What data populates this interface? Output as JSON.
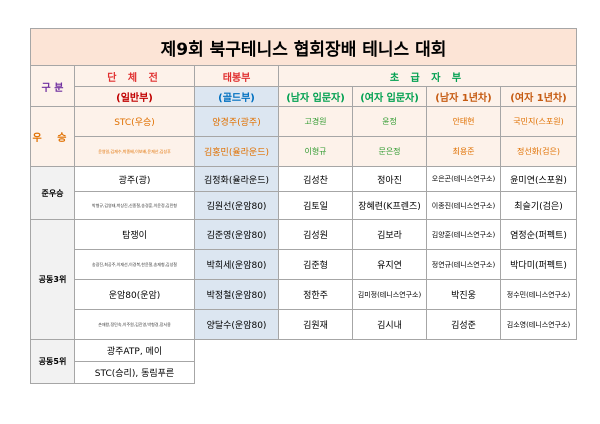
{
  "title": "제9회 북구테니스 협회장배 테니스 대회",
  "headers": {
    "gubun": "구 분",
    "danche": "단 체 전",
    "taebong": "태봉부",
    "chogeup": "초 급 자 부"
  },
  "subheaders": {
    "ilban": "(일반부)",
    "gold": "(골드부)",
    "male_intro": "(남자 입문자)",
    "female_intro": "(여자 입문자)",
    "male_1yr": "(남자 1년차)",
    "female_1yr": "(여자 1년차)"
  },
  "winner": {
    "label": "우 승",
    "team": "STC(우승)",
    "team_members": "윤영일,김재수,박종배,이보배,윤재산,김성후",
    "gold_a": "양경주(광주)",
    "gold_b": "김홍민(율라운드)",
    "male_intro_a": "고경원",
    "male_intro_b": "이형규",
    "female_intro_a": "윤정",
    "female_intro_b": "문은정",
    "male_1yr_a": "안태현",
    "male_1yr_b": "최용준",
    "female_1yr_a": "국민지(스포원)",
    "female_1yr_b": "정선화(검은)"
  },
  "runner_up": {
    "label": "준우승",
    "team": "광주(광)",
    "team_members": "박형규,김영태,박상진,신종철,송경훈,이윤정,김민형",
    "gold_a": "김정화(율라운드)",
    "gold_b": "김원선(운암80)",
    "male_intro_a": "김성찬",
    "male_intro_b": "김토일",
    "female_intro_a": "정아진",
    "female_intro_b": "장혜련(K프렌즈)",
    "male_1yr_a": "오은곤(테니스연구소)",
    "male_1yr_b": "이종진(테니스연구소)",
    "female_1yr_a": "윤미연(스포원)",
    "female_1yr_b": "최슬기(검은)"
  },
  "third": {
    "label": "공동3위",
    "team_a": "탐쟁이",
    "team_a_members": "송광진,최공주,이재선,이경복,한윤철,송재형,김성철",
    "team_b": "운암80(운암)",
    "team_b_members": "손재왕,정민숙,이주원,김진영,박형경,장서용",
    "gold": [
      "김준영(운암80)",
      "박희세(운암80)",
      "박정철(운암80)",
      "양달수(운암80)"
    ],
    "male_intro": [
      "김성원",
      "김준형",
      "정한주",
      "김원재"
    ],
    "female_intro": [
      "김보라",
      "유지연",
      "김미정(테니스연구소)",
      "김시내"
    ],
    "male_1yr": [
      "김양훈(테니스연구소)",
      "정연규(테니스연구소)",
      "박진웅",
      "김성준"
    ],
    "female_1yr": [
      "염정순(퍼펙트)",
      "박다미(퍼펙트)",
      "정수민(테니스연구소)",
      "김소영(테니스연구소)"
    ]
  },
  "fifth": {
    "label": "공동5위",
    "line1": "광주ATP, 메이",
    "line2": "STC(승리), 동림푸른"
  }
}
